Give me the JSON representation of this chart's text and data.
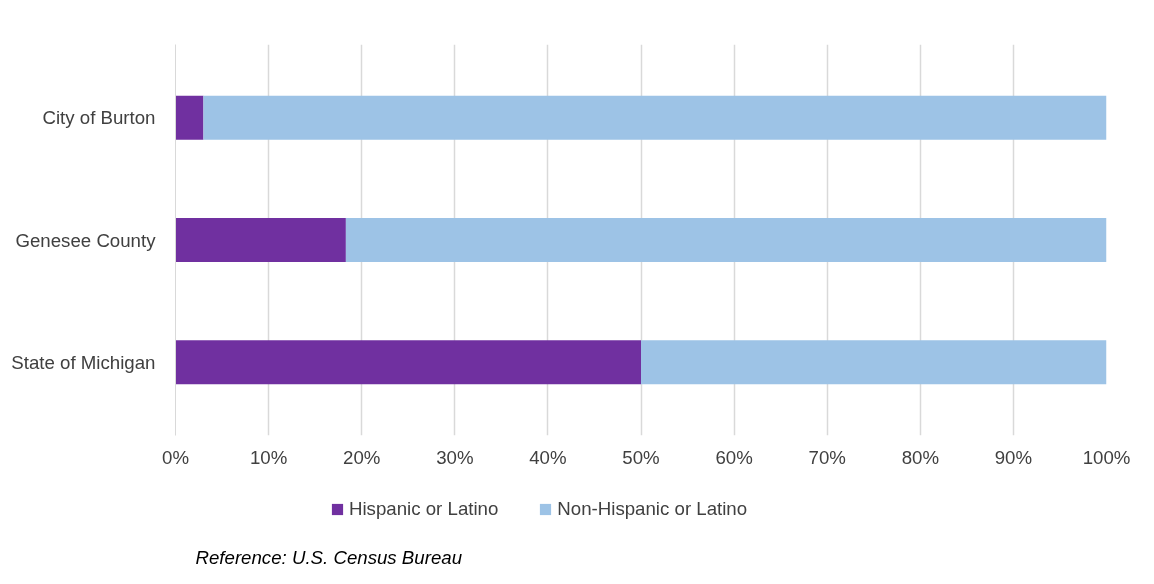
{
  "chart_data": {
    "type": "bar",
    "orientation": "horizontal",
    "stacked": true,
    "categories": [
      "City of Burton",
      "Genesee County",
      "State of Michigan"
    ],
    "series": [
      {
        "name": "Hispanic or Latino",
        "color": "#7030a0",
        "values": [
          3.0,
          18.3,
          50.0
        ]
      },
      {
        "name": "Non-Hispanic or Latino",
        "color": "#9dc3e6",
        "values": [
          97.0,
          81.7,
          50.0
        ]
      }
    ],
    "xlim": [
      0,
      100
    ],
    "xticks": [
      {
        "value": 0,
        "label": "0%"
      },
      {
        "value": 10,
        "label": "10%"
      },
      {
        "value": 20,
        "label": "20%"
      },
      {
        "value": 30,
        "label": "30%"
      },
      {
        "value": 40,
        "label": "40%"
      },
      {
        "value": 50,
        "label": "50%"
      },
      {
        "value": 60,
        "label": "60%"
      },
      {
        "value": 70,
        "label": "70%"
      },
      {
        "value": 80,
        "label": "80%"
      },
      {
        "value": 90,
        "label": "90%"
      },
      {
        "value": 100,
        "label": "100%"
      }
    ],
    "grid": "x",
    "legend": "bottom",
    "annotations": [
      "Reference:  U.S. Census Bureau"
    ]
  }
}
